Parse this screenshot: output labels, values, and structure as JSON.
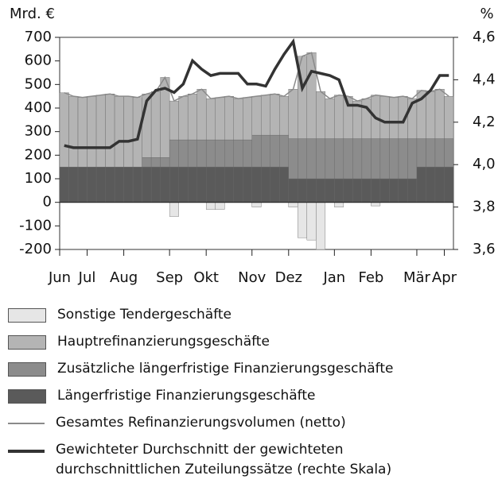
{
  "chart_data": {
    "type": "bar",
    "ylabel": "Mrd. €",
    "y2label": "%",
    "categories": [
      "Jun",
      null,
      null,
      "Jul",
      null,
      null,
      null,
      "Aug",
      null,
      null,
      null,
      null,
      "Sep",
      null,
      null,
      null,
      "Okt",
      null,
      null,
      null,
      null,
      "Nov",
      null,
      null,
      null,
      "Dez",
      null,
      null,
      null,
      null,
      "Jan",
      null,
      null,
      null,
      "Feb",
      null,
      null,
      null,
      null,
      "Mär",
      null,
      null,
      "Apr"
    ],
    "ylim": [
      -200,
      700
    ],
    "yticks": [
      -200,
      -100,
      0,
      100,
      200,
      300,
      400,
      500,
      600,
      700
    ],
    "y2lim": [
      3.6,
      4.6
    ],
    "y2ticks": [
      {
        "value": 3.6,
        "label": "3,6"
      },
      {
        "value": 3.8,
        "label": "3,8"
      },
      {
        "value": 4.0,
        "label": "4,0"
      },
      {
        "value": 4.2,
        "label": "4,2"
      },
      {
        "value": 4.4,
        "label": "4,4"
      },
      {
        "value": 4.6,
        "label": "4,6"
      }
    ],
    "series": [
      {
        "name": "Sonstige Tendergeschäfte",
        "type": "bar",
        "color": "#e6e6e6",
        "values": [
          0,
          0,
          0,
          0,
          0,
          0,
          0,
          0,
          0,
          0,
          0,
          0,
          -60,
          0,
          0,
          0,
          -30,
          -30,
          0,
          0,
          0,
          -20,
          0,
          0,
          0,
          -20,
          -150,
          -160,
          -200,
          0,
          -20,
          0,
          0,
          0,
          -15,
          0,
          0,
          0,
          0,
          0,
          0,
          0,
          0
        ]
      },
      {
        "name": "Hauptrefinanzierungsgeschäfte",
        "type": "bar",
        "color": "#b4b4b4",
        "values": [
          315,
          300,
          295,
          300,
          305,
          310,
          300,
          300,
          295,
          270,
          280,
          340,
          165,
          185,
          195,
          215,
          175,
          180,
          185,
          175,
          180,
          165,
          170,
          175,
          165,
          210,
          350,
          365,
          200,
          170,
          185,
          180,
          160,
          170,
          185,
          180,
          175,
          180,
          170,
          205,
          200,
          210,
          180
        ]
      },
      {
        "name": "Zusätzliche längerfristige Finanzierungsgeschäfte",
        "type": "bar",
        "color": "#8c8c8c",
        "values": [
          0,
          0,
          0,
          0,
          0,
          0,
          0,
          0,
          0,
          40,
          40,
          40,
          115,
          115,
          115,
          115,
          115,
          115,
          115,
          115,
          115,
          135,
          135,
          135,
          135,
          170,
          170,
          170,
          170,
          170,
          170,
          170,
          170,
          170,
          170,
          170,
          170,
          170,
          170,
          120,
          120,
          120,
          120
        ]
      },
      {
        "name": "Längerfristige Finanzierungsgeschäfte",
        "type": "bar",
        "color": "#5a5a5a",
        "values": [
          150,
          150,
          150,
          150,
          150,
          150,
          150,
          150,
          150,
          150,
          150,
          150,
          150,
          150,
          150,
          150,
          150,
          150,
          150,
          150,
          150,
          150,
          150,
          150,
          150,
          100,
          100,
          100,
          100,
          100,
          100,
          100,
          100,
          100,
          100,
          100,
          100,
          100,
          100,
          150,
          150,
          150,
          150
        ]
      },
      {
        "name": "Gesamtes Refinanzierungsvolumen (netto)",
        "type": "line",
        "color": "#8a8a8a",
        "values": [
          465,
          450,
          445,
          450,
          455,
          460,
          450,
          450,
          445,
          460,
          470,
          530,
          430,
          450,
          460,
          480,
          440,
          445,
          450,
          440,
          445,
          450,
          455,
          460,
          450,
          480,
          620,
          635,
          470,
          440,
          455,
          450,
          430,
          440,
          455,
          450,
          445,
          450,
          440,
          475,
          470,
          480,
          450
        ]
      },
      {
        "name": "Gewichteter Durchschnitt der gewichteten durchschnittlichen Zuteilungssätze (rechte Skala)",
        "type": "line",
        "axis": "y2",
        "color": "#333333",
        "values": [
          4.09,
          4.08,
          4.08,
          4.08,
          4.08,
          4.08,
          4.11,
          4.11,
          4.12,
          4.3,
          4.35,
          4.36,
          4.34,
          4.38,
          4.49,
          4.45,
          4.42,
          4.43,
          4.43,
          4.43,
          4.38,
          4.38,
          4.37,
          4.45,
          4.52,
          4.58,
          4.36,
          4.44,
          4.43,
          4.42,
          4.4,
          4.28,
          4.28,
          4.27,
          4.22,
          4.2,
          4.2,
          4.2,
          4.29,
          4.31,
          4.35,
          4.42,
          4.42
        ]
      }
    ]
  }
}
